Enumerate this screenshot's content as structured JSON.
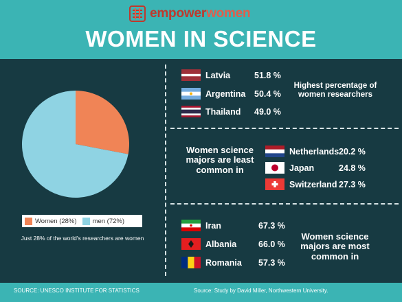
{
  "brand": {
    "name_part1": "empower",
    "name_part2": "women"
  },
  "title": "WOMEN IN SCIENCE",
  "chart_data": {
    "type": "pie",
    "slices": [
      {
        "label": "Women (28%)",
        "value": 28,
        "color": "#f08456"
      },
      {
        "label": "men (72%)",
        "value": 72,
        "color": "#8fd3e3"
      }
    ],
    "note": "Just 28% of the world's researchers are women"
  },
  "sections": [
    {
      "caption": "Highest percentage of women researchers",
      "rows": [
        {
          "country": "Latvia",
          "value": "51.8 %",
          "flag": "latvia-flag"
        },
        {
          "country": "Argentina",
          "value": "50.4 %",
          "flag": "argentina-flag"
        },
        {
          "country": "Thailand",
          "value": "49.0 %",
          "flag": "thailand-flag"
        }
      ]
    },
    {
      "caption": "Women science majors are least common in",
      "rows": [
        {
          "country": "Netherlands",
          "value": "20.2 %",
          "flag": "netherlands-flag"
        },
        {
          "country": "Japan",
          "value": "24.8 %",
          "flag": "japan-flag"
        },
        {
          "country": "Switzerland",
          "value": "27.3 %",
          "flag": "switzerland-flag"
        }
      ]
    },
    {
      "caption": "Women science majors are most common in",
      "rows": [
        {
          "country": "Iran",
          "value": "67.3 %",
          "flag": "iran-flag"
        },
        {
          "country": "Albania",
          "value": "66.0 %",
          "flag": "albania-flag"
        },
        {
          "country": "Romania",
          "value": "57.3 %",
          "flag": "romania-flag"
        }
      ]
    }
  ],
  "footer": {
    "source_left": "SOURCE: UNESCO INSTITUTE FOR STATISTICS",
    "source_right": "Source: Study by David Miller, Northwestern University."
  },
  "colors": {
    "header": "#3bb4b4",
    "background": "#173a42",
    "women": "#f08456",
    "men": "#8fd3e3"
  }
}
